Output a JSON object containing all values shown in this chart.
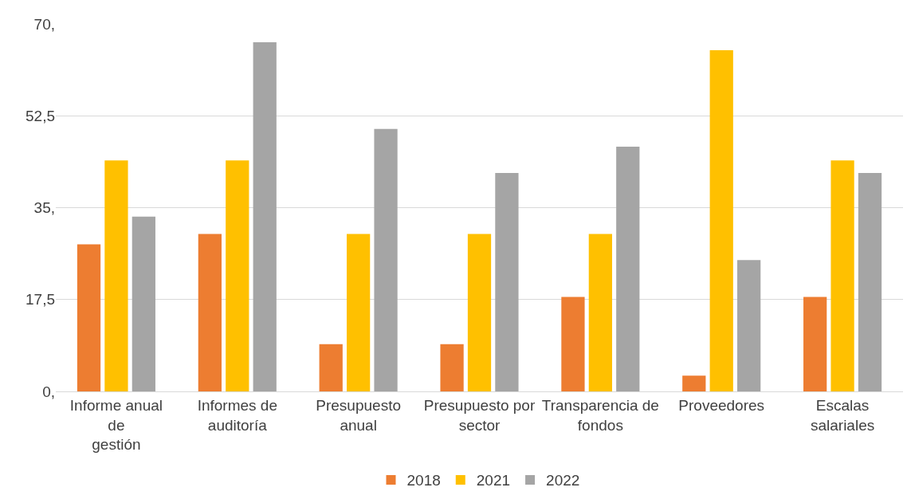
{
  "chart_data": {
    "type": "bar",
    "categories": [
      "Informe anual de gestión",
      "Informes de auditoría",
      "Presupuesto anual",
      "Presupuesto por sector",
      "Transparencia de fondos",
      "Proveedores",
      "Escalas salariales"
    ],
    "series": [
      {
        "name": "2018",
        "color": "#ed7d31",
        "values": [
          28,
          30,
          9,
          9,
          18,
          3,
          18
        ]
      },
      {
        "name": "2021",
        "color": "#ffc000",
        "values": [
          44,
          44,
          30,
          30,
          30,
          65,
          44
        ]
      },
      {
        "name": "2022",
        "color": "#a5a5a5",
        "values": [
          33.3,
          66.5,
          50,
          41.6,
          46.6,
          25,
          41.6
        ]
      }
    ],
    "ylim": [
      0,
      70
    ],
    "yticks": [
      {
        "value": 0,
        "label": "0,"
      },
      {
        "value": 17.5,
        "label": "17,5"
      },
      {
        "value": 35,
        "label": "35,"
      },
      {
        "value": 52.5,
        "label": "52,5"
      },
      {
        "value": 70,
        "label": "70,"
      }
    ],
    "grid": "y",
    "legend": "bottom"
  }
}
